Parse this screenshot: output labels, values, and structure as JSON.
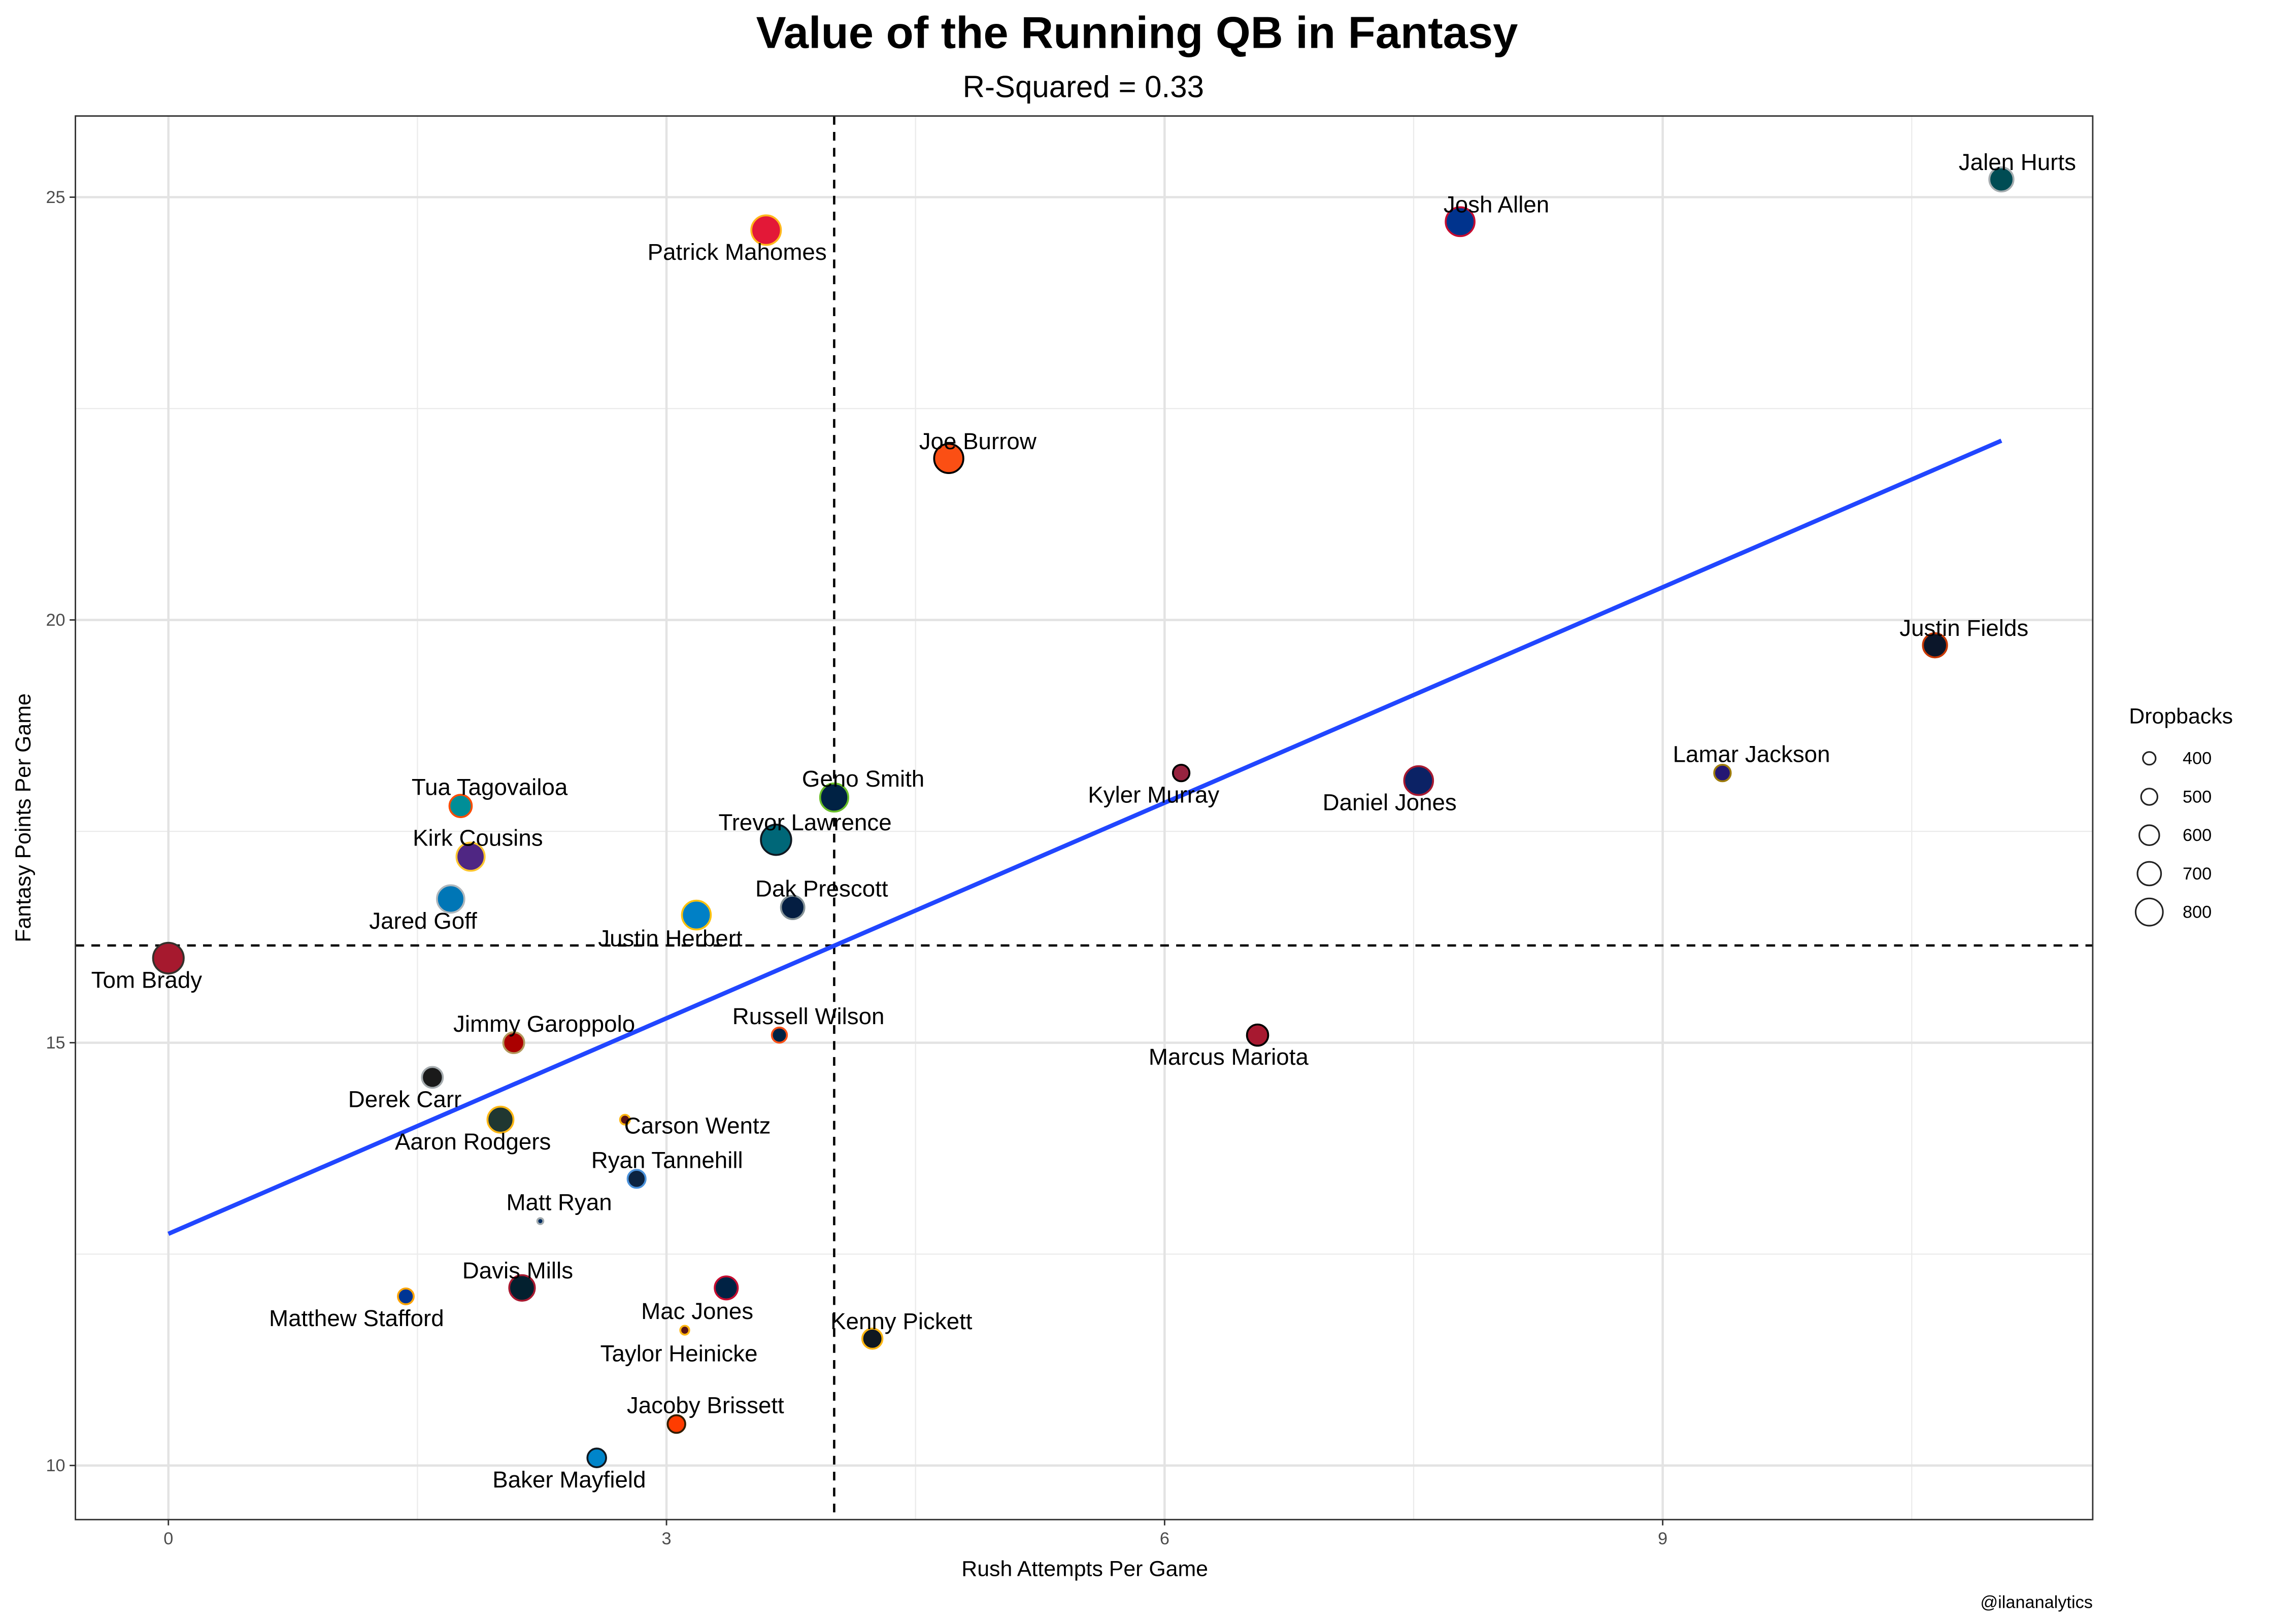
{
  "chart_data": {
    "type": "scatter",
    "title": "Value of the Running QB in Fantasy",
    "subtitle": "R-Squared = 0.33",
    "xlabel": "Rush Attempts Per Game",
    "ylabel": "Fantasy Points Per Game",
    "caption": "@ilananalytics",
    "xlim": [
      -0.56,
      11.59
    ],
    "ylim": [
      9.36,
      25.96
    ],
    "x_ticks": [
      0,
      3,
      6,
      9
    ],
    "y_ticks": [
      10,
      15,
      20,
      25
    ],
    "grid": true,
    "size_legend": {
      "title": "Dropbacks",
      "placement": "right",
      "values": [
        400,
        500,
        600,
        700,
        800
      ],
      "labels": [
        "400",
        "500",
        "600",
        "700",
        "800"
      ]
    },
    "reference_lines": {
      "vertical_x": 4.01,
      "horizontal_y": 16.15,
      "style": "dashed"
    },
    "trend_line": {
      "x": [
        0,
        11.04
      ],
      "y": [
        12.74,
        22.12
      ],
      "color": "#2146FF"
    },
    "points": [
      {
        "name": "Jalen Hurts",
        "x": 11.04,
        "y": 25.21,
        "dropbacks": 650,
        "fill": "#004C54",
        "stroke": "#A5ACAF"
      },
      {
        "name": "Josh Allen",
        "x": 7.78,
        "y": 24.71,
        "dropbacks": 780,
        "fill": "#00338D",
        "stroke": "#C60C30"
      },
      {
        "name": "Patrick Mahomes",
        "x": 3.6,
        "y": 24.61,
        "dropbacks": 800,
        "fill": "#E31837",
        "stroke": "#FFB81C"
      },
      {
        "name": "Joe Burrow",
        "x": 4.7,
        "y": 21.91,
        "dropbacks": 790,
        "fill": "#FB4F14",
        "stroke": "#000000"
      },
      {
        "name": "Justin Fields",
        "x": 10.64,
        "y": 19.7,
        "dropbacks": 650,
        "fill": "#0B162A",
        "stroke": "#C83803"
      },
      {
        "name": "Lamar Jackson",
        "x": 9.36,
        "y": 18.19,
        "dropbacks": 440,
        "fill": "#241773",
        "stroke": "#9E7C0C"
      },
      {
        "name": "Kyler Murray",
        "x": 6.1,
        "y": 18.19,
        "dropbacks": 440,
        "fill": "#97233F",
        "stroke": "#000000"
      },
      {
        "name": "Daniel Jones",
        "x": 7.53,
        "y": 18.1,
        "dropbacks": 780,
        "fill": "#0B2265",
        "stroke": "#A71930"
      },
      {
        "name": "Geno Smith",
        "x": 4.01,
        "y": 17.9,
        "dropbacks": 760,
        "fill": "#002244",
        "stroke": "#69BE28"
      },
      {
        "name": "Tua Tagovailoa",
        "x": 1.76,
        "y": 17.8,
        "dropbacks": 600,
        "fill": "#008E97",
        "stroke": "#FC4C02"
      },
      {
        "name": "Trevor Lawrence",
        "x": 3.66,
        "y": 17.4,
        "dropbacks": 820,
        "fill": "#006778",
        "stroke": "#101820"
      },
      {
        "name": "Kirk Cousins",
        "x": 1.82,
        "y": 17.2,
        "dropbacks": 760,
        "fill": "#4F2683",
        "stroke": "#FFC62F"
      },
      {
        "name": "Jared Goff",
        "x": 1.7,
        "y": 16.7,
        "dropbacks": 740,
        "fill": "#0076B6",
        "stroke": "#B0B7BC"
      },
      {
        "name": "Justin Herbert",
        "x": 3.18,
        "y": 16.51,
        "dropbacks": 780,
        "fill": "#0080C6",
        "stroke": "#FFC20E"
      },
      {
        "name": "Dak Prescott",
        "x": 3.76,
        "y": 16.6,
        "dropbacks": 630,
        "fill": "#041E42",
        "stroke": "#869397"
      },
      {
        "name": "Tom Brady",
        "x": 0.0,
        "y": 16.0,
        "dropbacks": 830,
        "fill": "#A6192E",
        "stroke": "#34302B"
      },
      {
        "name": "Marcus Mariota",
        "x": 6.56,
        "y": 15.09,
        "dropbacks": 570,
        "fill": "#A71930",
        "stroke": "#000000"
      },
      {
        "name": "Russell Wilson",
        "x": 3.68,
        "y": 15.09,
        "dropbacks": 400,
        "fill": "#002244",
        "stroke": "#FB4F14"
      },
      {
        "name": "Jimmy Garoppolo",
        "x": 2.08,
        "y": 15.0,
        "dropbacks": 560,
        "fill": "#AA0000",
        "stroke": "#B3995D"
      },
      {
        "name": "Derek Carr",
        "x": 1.59,
        "y": 14.59,
        "dropbacks": 560,
        "fill": "#1A1A1A",
        "stroke": "#A5ACAF"
      },
      {
        "name": "Aaron Rodgers",
        "x": 2.0,
        "y": 14.09,
        "dropbacks": 700,
        "fill": "#203731",
        "stroke": "#FFB612"
      },
      {
        "name": "Carson Wentz",
        "x": 2.75,
        "y": 14.09,
        "dropbacks": 255,
        "fill": "#5A1414",
        "stroke": "#FFB612"
      },
      {
        "name": "Ryan Tannehill",
        "x": 2.82,
        "y": 13.39,
        "dropbacks": 480,
        "fill": "#0C2340",
        "stroke": "#4B92DB"
      },
      {
        "name": "Matt Ryan",
        "x": 2.24,
        "y": 12.89,
        "dropbacks": 150,
        "fill": "#002C5F",
        "stroke": "#A2AAAD"
      },
      {
        "name": "Davis Mills",
        "x": 2.13,
        "y": 12.1,
        "dropbacks": 690,
        "fill": "#03202F",
        "stroke": "#A71930"
      },
      {
        "name": "Mac Jones",
        "x": 3.36,
        "y": 12.1,
        "dropbacks": 620,
        "fill": "#002244",
        "stroke": "#C60C30"
      },
      {
        "name": "Matthew Stafford",
        "x": 1.43,
        "y": 12.0,
        "dropbacks": 420,
        "fill": "#003594",
        "stroke": "#FFA300"
      },
      {
        "name": "Taylor Heinicke",
        "x": 3.11,
        "y": 11.6,
        "dropbacks": 230,
        "fill": "#5A1414",
        "stroke": "#FFB612"
      },
      {
        "name": "Kenny Pickett",
        "x": 4.24,
        "y": 11.5,
        "dropbacks": 540,
        "fill": "#101820",
        "stroke": "#FFB612"
      },
      {
        "name": "Jacoby Brissett",
        "x": 3.06,
        "y": 10.49,
        "dropbacks": 470,
        "fill": "#FF3C00",
        "stroke": "#311D00"
      },
      {
        "name": "Baker Mayfield",
        "x": 2.58,
        "y": 10.09,
        "dropbacks": 500,
        "fill": "#0085CA",
        "stroke": "#101820"
      }
    ]
  }
}
